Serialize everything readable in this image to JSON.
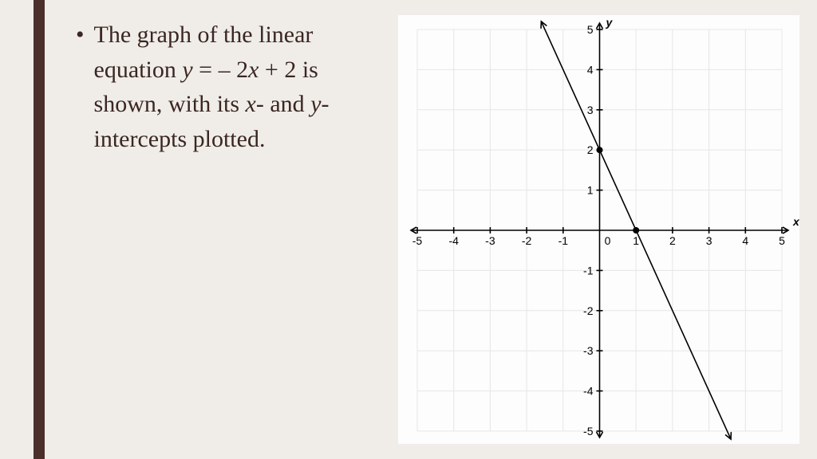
{
  "accent_color": "#4a2f2a",
  "background_color": "#f0ede8",
  "text_color": "#3a2622",
  "bullet_text": {
    "part1": "The graph of the linear equation ",
    "eq_y": "y",
    "eq_mid": " = – 2",
    "eq_x": "x",
    "eq_end": " + 2",
    "part2": " is shown, with its ",
    "xi": "x",
    "part3": "- and ",
    "yi": "y",
    "part4": "-intercepts plotted."
  },
  "graph": {
    "type": "line",
    "panel_bg": "#fdfdfd",
    "grid_color": "#e6e6e6",
    "axis_color": "#000000",
    "line_color": "#000000",
    "xlim": [
      -5,
      5
    ],
    "ylim": [
      -5,
      5
    ],
    "x_ticks": [
      -5,
      -4,
      -3,
      -2,
      -1,
      0,
      1,
      2,
      3,
      4,
      5
    ],
    "y_ticks": [
      -5,
      -4,
      -3,
      -2,
      -1,
      1,
      2,
      3,
      4,
      5
    ],
    "x_axis_label": "x",
    "y_axis_label": "y",
    "zero_label": "0",
    "line_points": [
      [
        -1.6,
        5.2
      ],
      [
        3.6,
        -5.2
      ]
    ],
    "intercepts": [
      [
        0,
        2
      ],
      [
        1,
        0
      ]
    ],
    "point_radius": 4,
    "line_width": 1.6,
    "tick_fontsize": 14,
    "axis_label_fontsize": 14
  }
}
